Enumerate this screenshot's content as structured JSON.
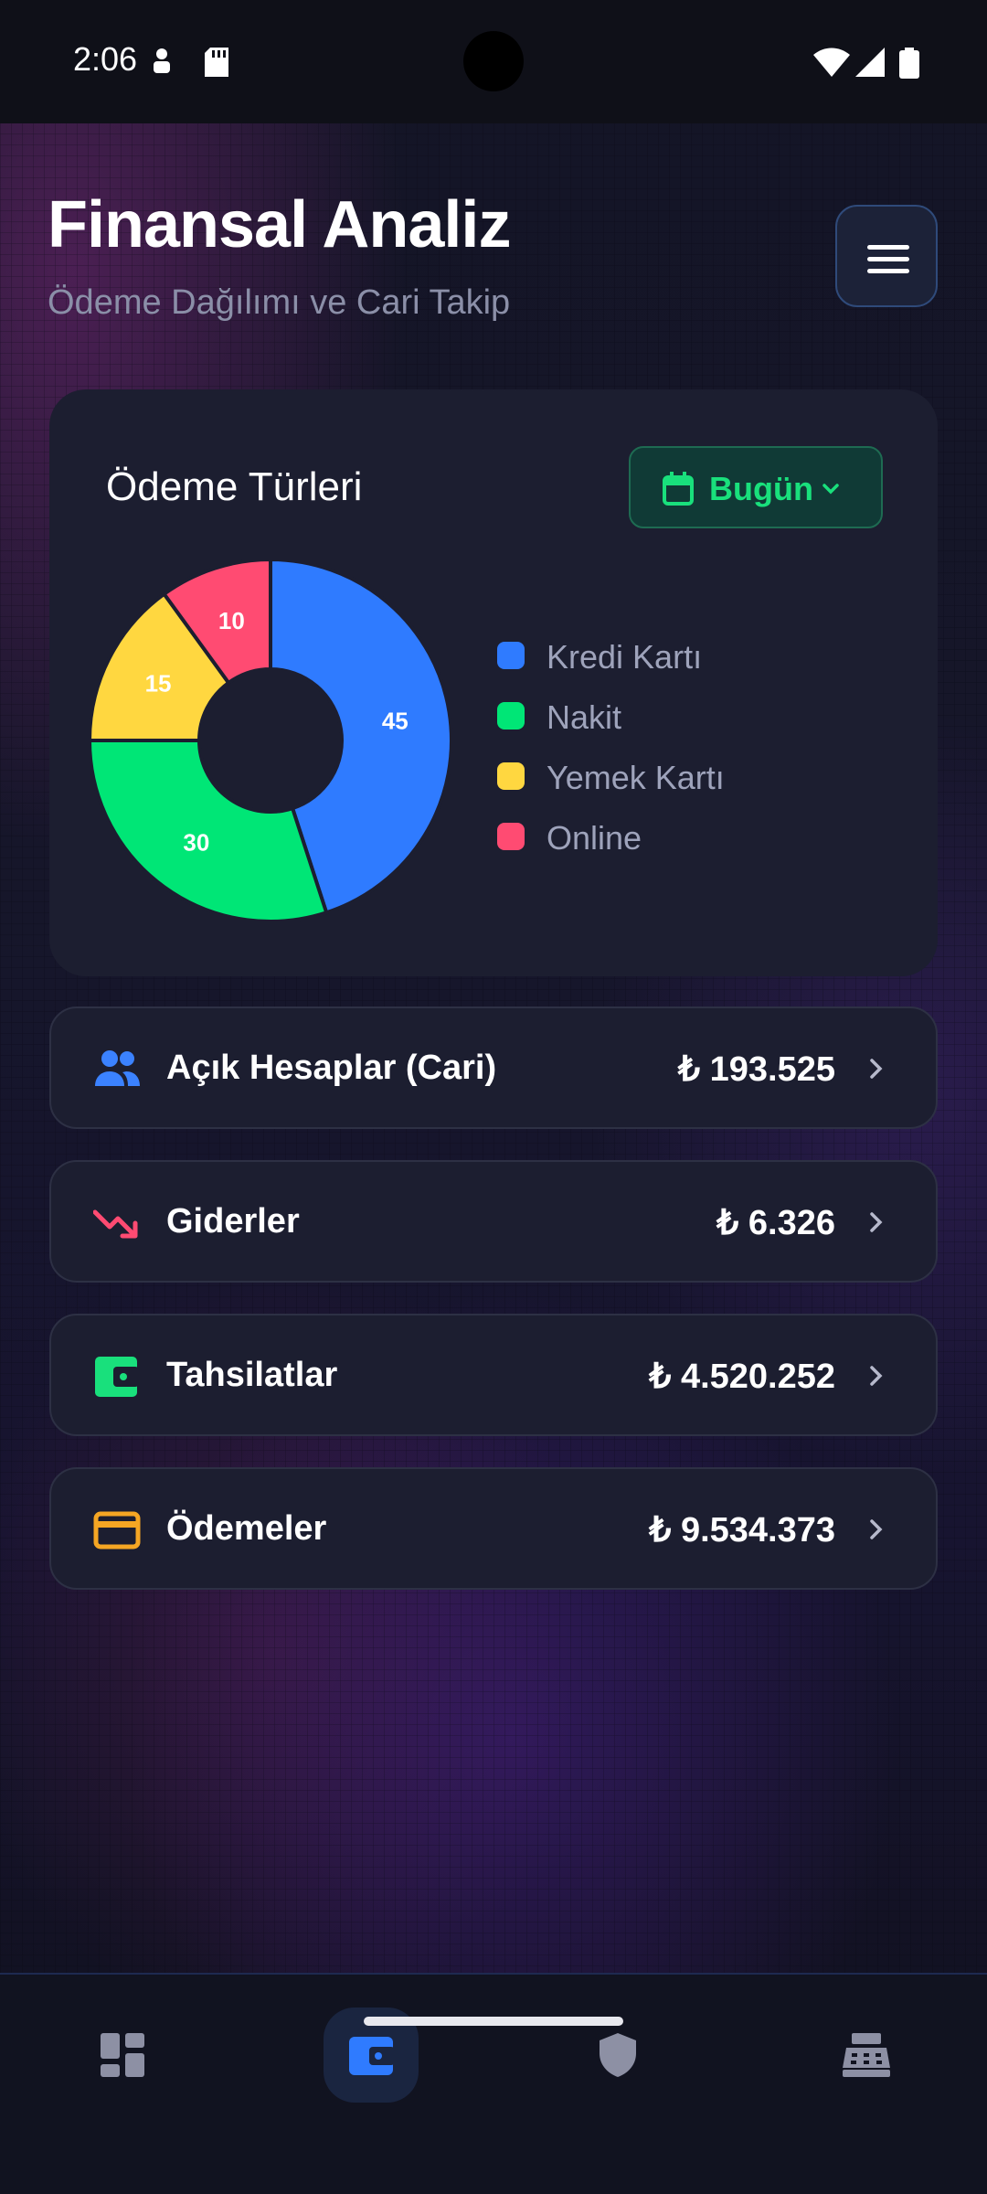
{
  "status_bar": {
    "time": "2:06"
  },
  "header": {
    "title": "Finansal Analiz",
    "subtitle": "Ödeme Dağılımı ve Cari Takip"
  },
  "payment_card": {
    "title": "Ödeme Türleri",
    "period_label": "Bugün"
  },
  "chart_data": {
    "type": "pie",
    "title": "",
    "categories": [
      "Kredi Kartı",
      "Nakit",
      "Yemek Kartı",
      "Online"
    ],
    "values": [
      45,
      30,
      15,
      10
    ],
    "colors": [
      "#2f7bff",
      "#00e676",
      "#ffd740",
      "#ff4b72"
    ],
    "donut": true,
    "legend_position": "right"
  },
  "summary": [
    {
      "label": "Açık Hesaplar (Cari)",
      "amount": "₺ 193.525",
      "icon": "people-icon",
      "color": "#3b82ff"
    },
    {
      "label": "Giderler",
      "amount": "₺ 6.326",
      "icon": "trending-down-icon",
      "color": "#ff4b72"
    },
    {
      "label": "Tahsilatlar",
      "amount": "₺ 4.520.252",
      "icon": "wallet-icon",
      "color": "#19e07c"
    },
    {
      "label": "Ödemeler",
      "amount": "₺ 9.534.373",
      "icon": "credit-card-icon",
      "color": "#f5a623"
    }
  ],
  "bottom_nav": {
    "items": [
      "dashboard-icon",
      "wallet-icon",
      "shield-icon",
      "cash-register-icon"
    ],
    "active": 1,
    "accent": "#2f7bff"
  }
}
